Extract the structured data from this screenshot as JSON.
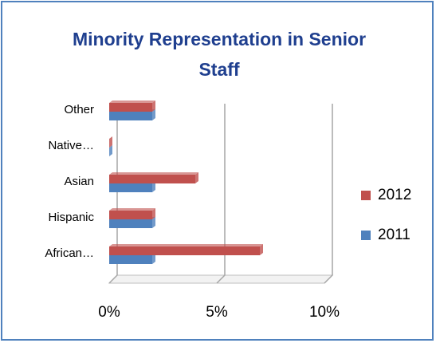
{
  "chart_data": {
    "type": "bar",
    "orientation": "horizontal",
    "title": "Minority Representation in Senior Staff",
    "categories": [
      "African…",
      "Hispanic",
      "Asian",
      "Native…",
      "Other"
    ],
    "series": [
      {
        "name": "2011",
        "color": "#4f81bd",
        "values": [
          2,
          2,
          2,
          0,
          2
        ]
      },
      {
        "name": "2012",
        "color": "#c0504d",
        "values": [
          7,
          2,
          4,
          0,
          2
        ]
      }
    ],
    "xlim": [
      0,
      10
    ],
    "xticks": [
      {
        "value": 0,
        "label": "0%"
      },
      {
        "value": 5,
        "label": "5%"
      },
      {
        "value": 10,
        "label": "10%"
      }
    ],
    "grid": true,
    "legend": "right"
  }
}
